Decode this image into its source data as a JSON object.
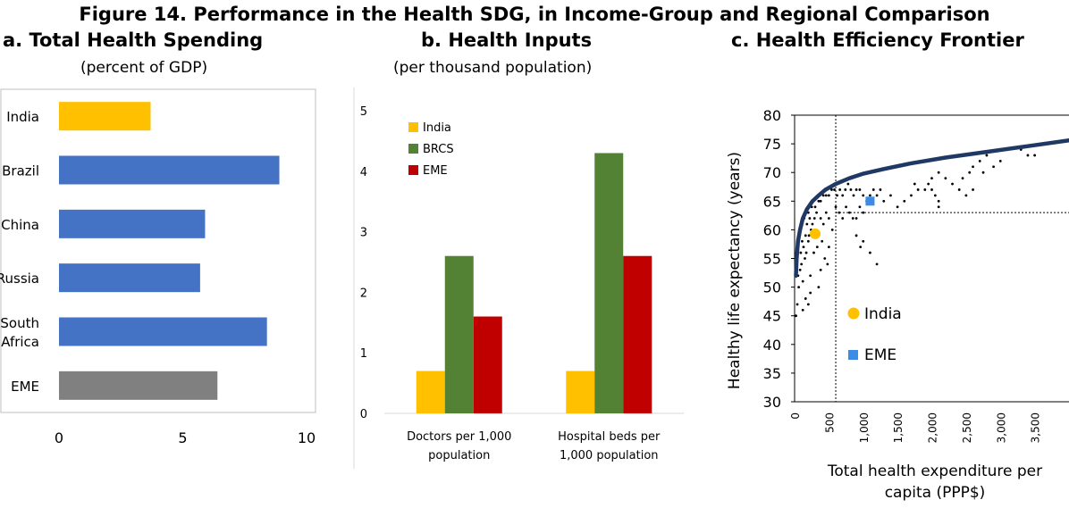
{
  "figure_title": "Figure 14. Performance in the Health SDG, in Income-Group and Regional Comparison",
  "panels": {
    "a": {
      "title": "a. Total Health Spending",
      "subtitle": "(percent of GDP)"
    },
    "b": {
      "title": "b. Health Inputs",
      "subtitle": "(per thousand population)"
    },
    "c": {
      "title": "c. Health Efficiency Frontier",
      "xlabel_line1": "Total health expenditure per",
      "xlabel_line2": "capita (PPP$)",
      "ylabel": "Healthy life expectancy (years)"
    }
  },
  "colors": {
    "india": "#FFC000",
    "bar_blue": "#4472C4",
    "eme_gray": "#808080",
    "brcs_green": "#548235",
    "eme_red": "#C00000",
    "frontier": "#1F3864",
    "eme_square": "#3C8CE7"
  },
  "chart_data": [
    {
      "type": "bar",
      "orientation": "horizontal",
      "categories": [
        "India",
        "Brazil",
        "China",
        "Russia",
        "South Africa",
        "EME"
      ],
      "category_lines": [
        [
          "India"
        ],
        [
          "Brazil"
        ],
        [
          "China"
        ],
        [
          "Russia"
        ],
        [
          "South",
          "Africa"
        ],
        [
          "EME"
        ]
      ],
      "values": [
        3.7,
        8.9,
        5.9,
        5.7,
        8.4,
        6.4
      ],
      "bar_colors": [
        "#FFC000",
        "#4472C4",
        "#4472C4",
        "#4472C4",
        "#4472C4",
        "#808080"
      ],
      "xlim": [
        0,
        10
      ],
      "xticks": [
        "0",
        "5",
        "10"
      ]
    },
    {
      "type": "bar",
      "categories": [
        "Doctors per 1,000 population",
        "Hospital beds per 1,000 population"
      ],
      "category_lines": [
        [
          "Doctors per 1,000",
          "population"
        ],
        [
          "Hospital beds per",
          "1,000 population"
        ]
      ],
      "series": [
        {
          "name": "India",
          "values": [
            0.7,
            0.7
          ],
          "color": "#FFC000"
        },
        {
          "name": "BRCS",
          "values": [
            2.6,
            4.3
          ],
          "color": "#548235"
        },
        {
          "name": "EME",
          "values": [
            1.6,
            2.6
          ],
          "color": "#C00000"
        }
      ],
      "ylim": [
        0,
        5
      ],
      "yticks": [
        "0",
        "1",
        "2",
        "3",
        "4",
        "5"
      ],
      "legend": "top-left"
    },
    {
      "type": "scatter",
      "xlim": [
        0,
        4000
      ],
      "ylim": [
        30,
        80
      ],
      "xticks": [
        "0",
        "500",
        "1,000",
        "1,500",
        "2,000",
        "2,500",
        "3,000",
        "3,500"
      ],
      "yticks": [
        "30",
        "35",
        "40",
        "45",
        "50",
        "55",
        "60",
        "65",
        "70",
        "75",
        "80"
      ],
      "reference_lines": {
        "x": 600,
        "y": 63
      },
      "highlights": [
        {
          "name": "India",
          "x": 300,
          "y": 59.3,
          "color": "#FFC000",
          "marker": "circle"
        },
        {
          "name": "EME",
          "x": 1100,
          "y": 65,
          "color": "#3C8CE7",
          "marker": "square"
        }
      ],
      "frontier": [
        [
          20,
          52
        ],
        [
          30,
          55
        ],
        [
          50,
          58
        ],
        [
          80,
          60
        ],
        [
          120,
          62
        ],
        [
          180,
          63.6
        ],
        [
          260,
          65
        ],
        [
          350,
          66
        ],
        [
          450,
          67
        ],
        [
          600,
          68
        ],
        [
          800,
          69
        ],
        [
          1000,
          69.8
        ],
        [
          1300,
          70.6
        ],
        [
          1700,
          71.6
        ],
        [
          2200,
          72.6
        ],
        [
          2800,
          73.6
        ],
        [
          3400,
          74.6
        ],
        [
          4000,
          75.6
        ]
      ],
      "points": [
        [
          20,
          45
        ],
        [
          40,
          47
        ],
        [
          60,
          50
        ],
        [
          50,
          52
        ],
        [
          80,
          53
        ],
        [
          100,
          54
        ],
        [
          120,
          51
        ],
        [
          150,
          55
        ],
        [
          90,
          56
        ],
        [
          130,
          57
        ],
        [
          170,
          56
        ],
        [
          200,
          58
        ],
        [
          110,
          58
        ],
        [
          160,
          59
        ],
        [
          210,
          59
        ],
        [
          240,
          60
        ],
        [
          70,
          60
        ],
        [
          180,
          61
        ],
        [
          220,
          62
        ],
        [
          260,
          61
        ],
        [
          290,
          62
        ],
        [
          320,
          63
        ],
        [
          140,
          62
        ],
        [
          200,
          63
        ],
        [
          250,
          64
        ],
        [
          300,
          64
        ],
        [
          350,
          65
        ],
        [
          380,
          65
        ],
        [
          420,
          66
        ],
        [
          460,
          66
        ],
        [
          500,
          66
        ],
        [
          540,
          67
        ],
        [
          580,
          67
        ],
        [
          620,
          66
        ],
        [
          660,
          67
        ],
        [
          700,
          66
        ],
        [
          740,
          67
        ],
        [
          780,
          68
        ],
        [
          820,
          67
        ],
        [
          860,
          66
        ],
        [
          900,
          67
        ],
        [
          950,
          67
        ],
        [
          1000,
          66
        ],
        [
          1050,
          65
        ],
        [
          1100,
          66
        ],
        [
          1150,
          67
        ],
        [
          1200,
          66
        ],
        [
          1250,
          67
        ],
        [
          1300,
          65
        ],
        [
          380,
          62
        ],
        [
          420,
          61
        ],
        [
          460,
          63
        ],
        [
          500,
          62
        ],
        [
          550,
          60
        ],
        [
          600,
          64
        ],
        [
          650,
          63
        ],
        [
          700,
          62
        ],
        [
          750,
          64
        ],
        [
          800,
          63
        ],
        [
          850,
          62
        ],
        [
          900,
          62
        ],
        [
          950,
          64
        ],
        [
          1000,
          63
        ],
        [
          160,
          48
        ],
        [
          200,
          47
        ],
        [
          230,
          49
        ],
        [
          280,
          56
        ],
        [
          330,
          57
        ],
        [
          400,
          58
        ],
        [
          440,
          55
        ],
        [
          480,
          54
        ],
        [
          380,
          53
        ],
        [
          350,
          50
        ],
        [
          120,
          46
        ],
        [
          230,
          52
        ],
        [
          500,
          57
        ],
        [
          900,
          59
        ],
        [
          960,
          57
        ],
        [
          1000,
          58
        ],
        [
          1100,
          56
        ],
        [
          1200,
          54
        ],
        [
          1600,
          65
        ],
        [
          1700,
          66
        ],
        [
          1800,
          67
        ],
        [
          1750,
          68
        ],
        [
          1900,
          67
        ],
        [
          1950,
          68
        ],
        [
          2000,
          67
        ],
        [
          2050,
          66
        ],
        [
          2100,
          65
        ],
        [
          2000,
          69
        ],
        [
          2100,
          70
        ],
        [
          2200,
          69
        ],
        [
          2300,
          68
        ],
        [
          2400,
          67
        ],
        [
          2500,
          66
        ],
        [
          2450,
          69
        ],
        [
          2550,
          70
        ],
        [
          2600,
          71
        ],
        [
          2700,
          72
        ],
        [
          2800,
          73
        ],
        [
          2900,
          71
        ],
        [
          3000,
          72
        ],
        [
          3300,
          74
        ],
        [
          3400,
          73
        ],
        [
          3500,
          73
        ],
        [
          2100,
          64
        ],
        [
          1500,
          64
        ],
        [
          1400,
          66
        ],
        [
          2600,
          67
        ],
        [
          2750,
          70
        ]
      ]
    }
  ]
}
